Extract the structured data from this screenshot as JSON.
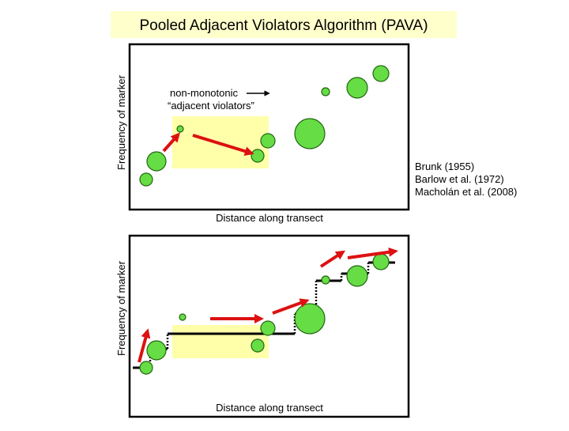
{
  "title": "Pooled Adjacent Violators Algorithm (PAVA)",
  "top_panel": {
    "y_label": "Frequency of marker",
    "x_label": "Distance along transect",
    "annotation": [
      "non-monotonic",
      "“adjacent violators”"
    ]
  },
  "references": [
    "Brunk (1955)",
    "Barlow et al. (1972)",
    "Macholán et al. (2008)"
  ],
  "bottom_panel": {
    "y_label": "Frequency of marker",
    "x_label": "Distance along transect"
  }
}
